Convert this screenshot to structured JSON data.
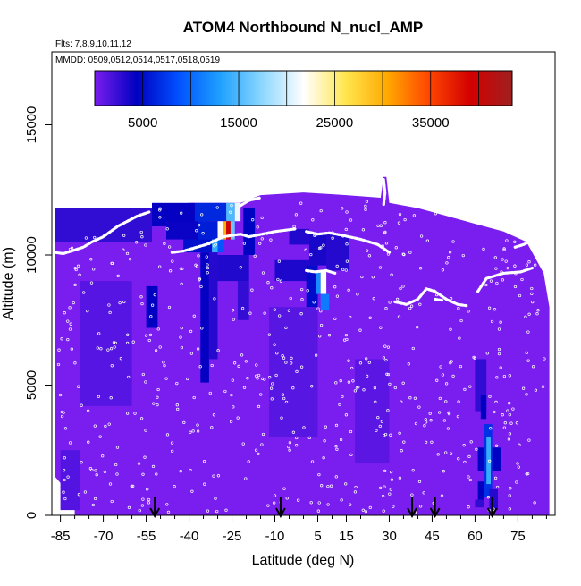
{
  "chart_data": {
    "type": "heatmap",
    "title": "ATOM4 Northbound N_nucl_AMP",
    "subtitle_flights": "Flts: 7,8,9,10,11,12",
    "subtitle_dates": "MMDD: 0509,0512,0514,0517,0518,0519",
    "xlabel": "Latitude (deg N)",
    "ylabel": "Altitude (m)",
    "xlim": [
      -88,
      88
    ],
    "ylim": [
      0,
      17800
    ],
    "x_ticks": [
      -85,
      -70,
      -55,
      -40,
      -25,
      -10,
      5,
      15,
      30,
      45,
      60,
      75
    ],
    "x_tick_labels": [
      "-85",
      "-70",
      "-55",
      "-40",
      "-25",
      "-10",
      "5",
      "15",
      "30",
      "45",
      "60",
      "75"
    ],
    "y_ticks": [
      0,
      5000,
      10000,
      15000
    ],
    "y_tick_labels": [
      "0",
      "5000",
      "10000",
      "15000"
    ],
    "colorbar": {
      "min": 0,
      "max": 43500,
      "ticks": [
        5000,
        15000,
        25000,
        35000
      ],
      "tick_labels": [
        "5000",
        "15000",
        "25000",
        "35000"
      ],
      "colors": [
        "#7a1ef0",
        "#0000c0",
        "#0050ff",
        "#1ea0ff",
        "#8cd7ff",
        "#ffffff",
        "#ffe650",
        "#ffaa00",
        "#ff4600",
        "#d20000",
        "#a02020"
      ]
    },
    "background_value": 700,
    "cells": [
      {
        "lat": [
          -87,
          -53
        ],
        "alt": [
          10500,
          11800
        ],
        "value": 2600
      },
      {
        "lat": [
          -53,
          -38
        ],
        "alt": [
          11100,
          12000
        ],
        "value": 4200
      },
      {
        "lat": [
          -38,
          -27
        ],
        "alt": [
          11300,
          12000
        ],
        "value": 6500
      },
      {
        "lat": [
          -27,
          -24
        ],
        "alt": [
          11300,
          12000
        ],
        "value": 15000
      },
      {
        "lat": [
          -24,
          -22
        ],
        "alt": [
          11300,
          12000
        ],
        "value": 21000
      },
      {
        "lat": [
          -48,
          -37
        ],
        "alt": [
          10600,
          11300
        ],
        "value": 4000
      },
      {
        "lat": [
          -37,
          -30
        ],
        "alt": [
          10600,
          11300
        ],
        "value": 6000
      },
      {
        "lat": [
          -30,
          -28
        ],
        "alt": [
          10600,
          11300
        ],
        "value": 22000
      },
      {
        "lat": [
          -28,
          -27
        ],
        "alt": [
          10600,
          11300
        ],
        "value": 30000
      },
      {
        "lat": [
          -27,
          -25.5
        ],
        "alt": [
          10600,
          11300
        ],
        "value": 39000
      },
      {
        "lat": [
          -25.5,
          -24
        ],
        "alt": [
          10600,
          11300
        ],
        "value": 16000
      },
      {
        "lat": [
          -42,
          -32
        ],
        "alt": [
          10100,
          10600
        ],
        "value": 5200
      },
      {
        "lat": [
          -32,
          -30
        ],
        "alt": [
          10100,
          10600
        ],
        "value": 14000
      },
      {
        "lat": [
          -30,
          -28
        ],
        "alt": [
          10100,
          10600
        ],
        "value": 9000
      },
      {
        "lat": [
          -21,
          -17
        ],
        "alt": [
          10000,
          11800
        ],
        "value": 4500
      },
      {
        "lat": [
          -36,
          -33
        ],
        "alt": [
          5100,
          10100
        ],
        "value": 4200
      },
      {
        "lat": [
          -33,
          -30
        ],
        "alt": [
          6000,
          10100
        ],
        "value": 3000
      },
      {
        "lat": [
          -30,
          -19
        ],
        "alt": [
          9000,
          10000
        ],
        "value": 3200
      },
      {
        "lat": [
          -23,
          -19
        ],
        "alt": [
          7500,
          9000
        ],
        "value": 2500
      },
      {
        "lat": [
          -55,
          -51
        ],
        "alt": [
          7200,
          8800
        ],
        "value": 4400
      },
      {
        "lat": [
          -10,
          2
        ],
        "alt": [
          9000,
          9800
        ],
        "value": 3300
      },
      {
        "lat": [
          1,
          5
        ],
        "alt": [
          8000,
          9600
        ],
        "value": 5000
      },
      {
        "lat": [
          4.5,
          6
        ],
        "alt": [
          8500,
          9400
        ],
        "value": 12000
      },
      {
        "lat": [
          6,
          8
        ],
        "alt": [
          8500,
          9400
        ],
        "value": 22000
      },
      {
        "lat": [
          6,
          9
        ],
        "alt": [
          7900,
          8500
        ],
        "value": 11000
      },
      {
        "lat": [
          2,
          9
        ],
        "alt": [
          9600,
          10800
        ],
        "value": 3500
      },
      {
        "lat": [
          8,
          16
        ],
        "alt": [
          9400,
          10800
        ],
        "value": 3000
      },
      {
        "lat": [
          -5,
          2
        ],
        "alt": [
          10400,
          11000
        ],
        "value": 3200
      },
      {
        "lat": [
          -78,
          -60
        ],
        "alt": [
          4200,
          9000
        ],
        "value": 1300
      },
      {
        "lat": [
          -12,
          5
        ],
        "alt": [
          3000,
          8000
        ],
        "value": 1200
      },
      {
        "lat": [
          18,
          30
        ],
        "alt": [
          2000,
          6000
        ],
        "value": 1100
      },
      {
        "lat": [
          -85,
          -78
        ],
        "alt": [
          200,
          2500
        ],
        "value": 1400
      },
      {
        "lat": [
          60,
          64
        ],
        "alt": [
          4000,
          6000
        ],
        "value": 2600
      },
      {
        "lat": [
          62,
          64
        ],
        "alt": [
          3700,
          4600
        ],
        "value": 4300
      },
      {
        "lat": [
          61,
          69
        ],
        "alt": [
          1700,
          2600
        ],
        "value": 4500
      },
      {
        "lat": [
          63,
          66
        ],
        "alt": [
          700,
          3500
        ],
        "value": 7000
      },
      {
        "lat": [
          64,
          65.5
        ],
        "alt": [
          1200,
          3000
        ],
        "value": 14000
      },
      {
        "lat": [
          61,
          63
        ],
        "alt": [
          600,
          1300
        ],
        "value": 4300
      },
      {
        "lat": [
          60,
          63
        ],
        "alt": [
          300,
          600
        ],
        "value": 2600
      },
      {
        "lat": [
          65,
          68
        ],
        "alt": [
          200,
          1000
        ],
        "value": 3000
      }
    ],
    "flight_tracks": [
      [
        [
          -87,
          10100
        ],
        [
          -84,
          10050
        ],
        [
          -77,
          10300
        ],
        [
          -74,
          10500
        ],
        [
          -70,
          10700
        ],
        [
          -65,
          11100
        ],
        [
          -58,
          11500
        ],
        [
          -54,
          11650
        ]
      ],
      [
        [
          -46,
          10100
        ],
        [
          -42,
          10150
        ],
        [
          -34,
          10400
        ],
        [
          -28,
          10700
        ],
        [
          -22,
          10800
        ],
        [
          -19,
          10700
        ],
        [
          -10,
          10900
        ],
        [
          -3,
          11000
        ]
      ],
      [
        [
          -22,
          11900
        ],
        [
          -19,
          12100
        ],
        [
          -15,
          12200
        ]
      ],
      [
        [
          1,
          10900
        ],
        [
          5,
          10800
        ],
        [
          9,
          10850
        ],
        [
          14,
          10750
        ],
        [
          20,
          10600
        ],
        [
          26,
          10400
        ],
        [
          30,
          10100
        ]
      ],
      [
        [
          1,
          9400
        ],
        [
          4,
          9350
        ],
        [
          8,
          9400
        ],
        [
          11,
          9300
        ]
      ],
      [
        [
          28,
          12900
        ],
        [
          28.5,
          12400
        ],
        [
          28,
          11900
        ]
      ],
      [
        [
          32,
          8200
        ],
        [
          36,
          8100
        ],
        [
          40,
          8300
        ],
        [
          43,
          8700
        ],
        [
          46,
          8600
        ],
        [
          50,
          8300
        ],
        [
          54,
          8100
        ],
        [
          57,
          8050
        ]
      ],
      [
        [
          46,
          8300
        ],
        [
          49,
          8250
        ]
      ],
      [
        [
          61,
          8600
        ],
        [
          64,
          9100
        ],
        [
          70,
          9300
        ],
        [
          76,
          9350
        ],
        [
          80,
          9500
        ]
      ],
      [
        [
          74,
          10300
        ],
        [
          77,
          10400
        ],
        [
          81,
          10600
        ]
      ],
      [
        [
          74,
          10800
        ],
        [
          79,
          10900
        ],
        [
          83,
          11000
        ]
      ]
    ],
    "arrows_lat": [
      -52,
      -8,
      38,
      46,
      66
    ]
  }
}
